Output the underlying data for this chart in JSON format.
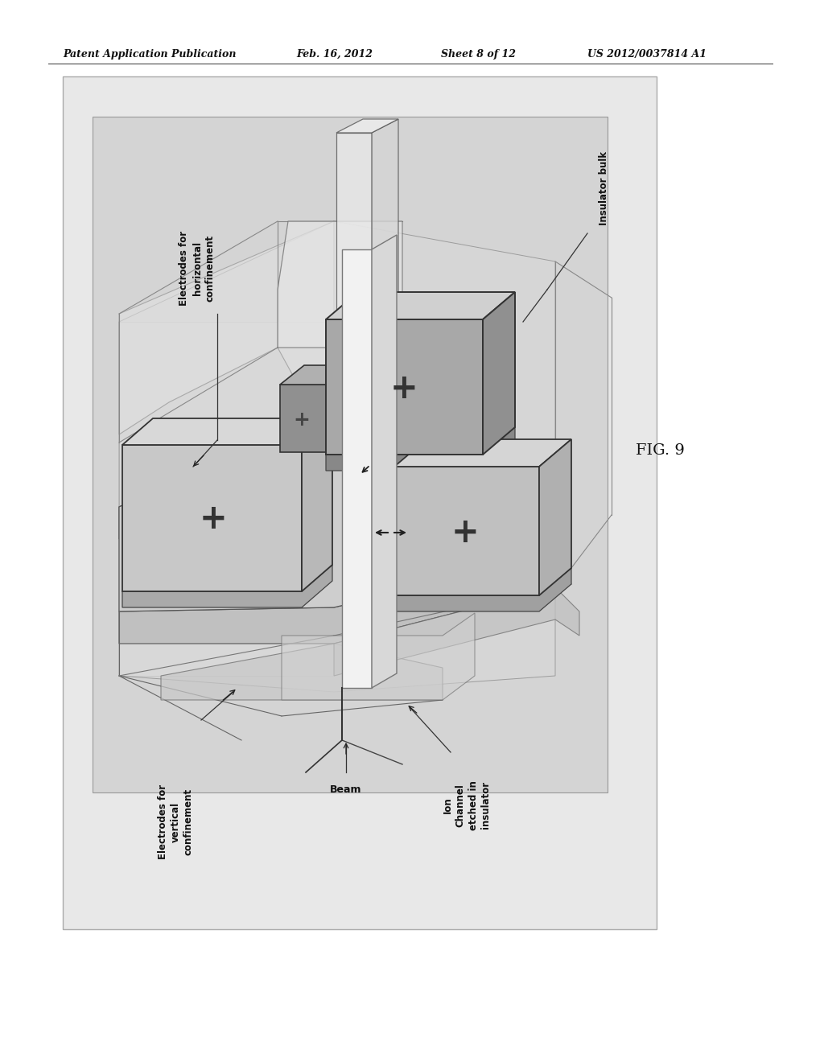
{
  "bg_color": "#ffffff",
  "header_text": "Patent Application Publication",
  "header_date": "Feb. 16, 2012",
  "header_sheet": "Sheet 8 of 12",
  "header_patent": "US 2012/0037814 A1",
  "fig_label": "FIG. 9",
  "diagram_bg": "#d4d4d4",
  "label_horiz": "Electrodes for\nhorizontal\nconfinement",
  "label_vert": "Electrodes for\nvertical\nconfinement",
  "label_beam": "Beam",
  "label_ion": "Ion\nChannel\netched in\ninsulator",
  "label_insulator": "Insulator bulk",
  "col_top_face": "#c8c8c8",
  "col_front_face": "#aaaaaa",
  "col_right_face": "#989898",
  "col_dark_face": "#888888",
  "col_darker_face": "#707070",
  "col_channel": "#f0f0f0",
  "col_channel_side": "#d8d8d8",
  "col_line": "#333333",
  "col_thin_line": "#666666"
}
